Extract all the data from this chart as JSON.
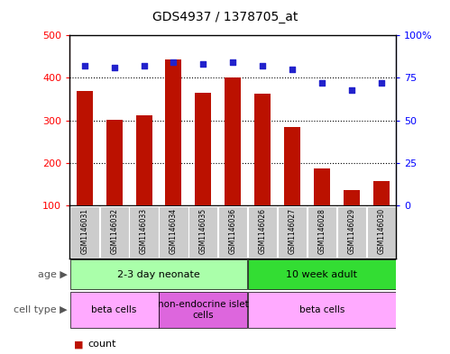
{
  "title": "GDS4937 / 1378705_at",
  "samples": [
    "GSM1146031",
    "GSM1146032",
    "GSM1146033",
    "GSM1146034",
    "GSM1146035",
    "GSM1146036",
    "GSM1146026",
    "GSM1146027",
    "GSM1146028",
    "GSM1146029",
    "GSM1146030"
  ],
  "counts": [
    370,
    302,
    312,
    443,
    365,
    400,
    362,
    284,
    187,
    135,
    158
  ],
  "percentiles": [
    82,
    81,
    82,
    84,
    83,
    84,
    82,
    80,
    72,
    68,
    72
  ],
  "ylim_left": [
    100,
    500
  ],
  "ylim_right": [
    0,
    100
  ],
  "yticks_left": [
    100,
    200,
    300,
    400,
    500
  ],
  "yticks_right": [
    0,
    25,
    50,
    75,
    100
  ],
  "ytick_labels_right": [
    "0",
    "25",
    "50",
    "75",
    "100%"
  ],
  "bar_color": "#BB1100",
  "dot_color": "#2222CC",
  "age_groups": [
    {
      "label": "2-3 day neonate",
      "start": 0,
      "end": 6,
      "color": "#AAFFAA"
    },
    {
      "label": "10 week adult",
      "start": 6,
      "end": 11,
      "color": "#33DD33"
    }
  ],
  "cell_type_groups": [
    {
      "label": "beta cells",
      "start": 0,
      "end": 3,
      "color": "#FFAAFF"
    },
    {
      "label": "non-endocrine islet\ncells",
      "start": 3,
      "end": 6,
      "color": "#DD66DD"
    },
    {
      "label": "beta cells",
      "start": 6,
      "end": 11,
      "color": "#FFAAFF"
    }
  ],
  "sample_box_color": "#CCCCCC",
  "sample_box_edge_color": "#AAAAAA"
}
